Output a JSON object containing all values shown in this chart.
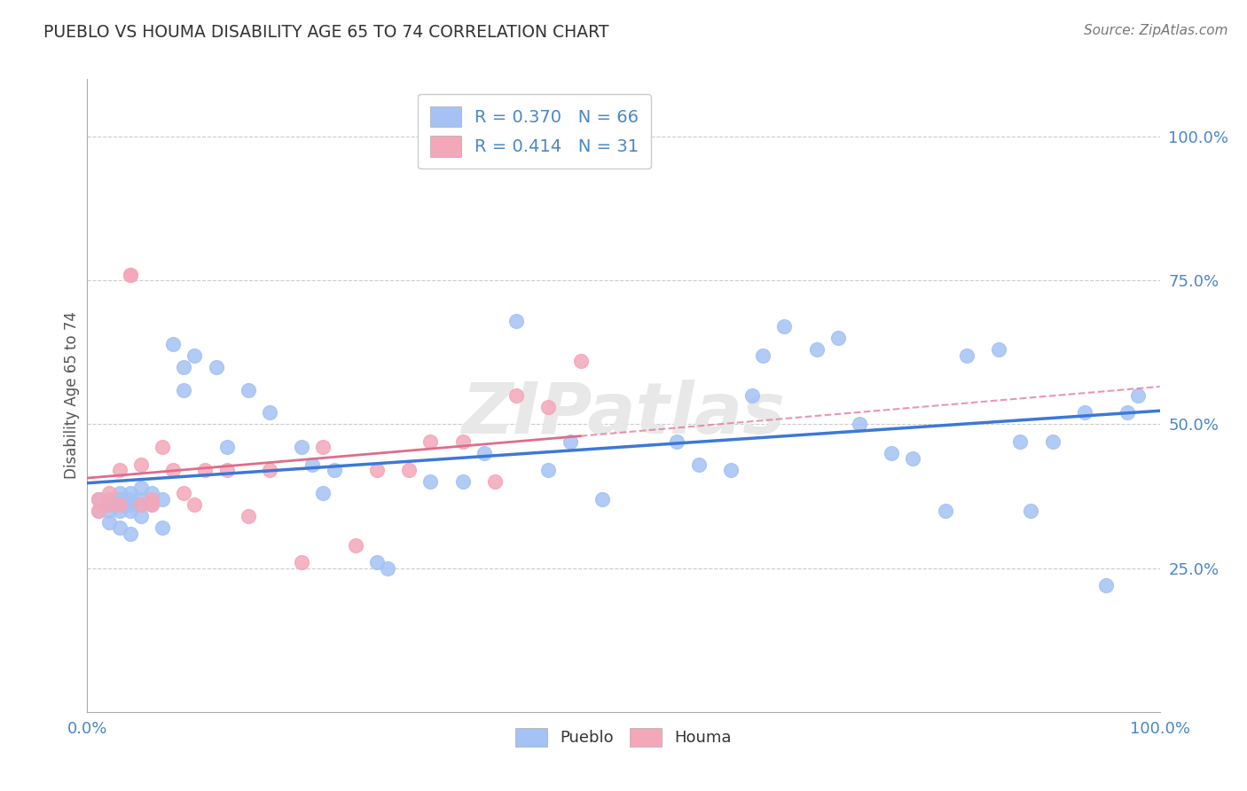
{
  "title": "PUEBLO VS HOUMA DISABILITY AGE 65 TO 74 CORRELATION CHART",
  "source": "Source: ZipAtlas.com",
  "ylabel_label": "Disability Age 65 to 74",
  "xlim": [
    0.0,
    1.0
  ],
  "ylim": [
    0.0,
    1.1
  ],
  "xtick_labels": [
    "0.0%",
    "",
    "",
    "",
    "",
    "100.0%"
  ],
  "ytick_labels": [
    "25.0%",
    "50.0%",
    "75.0%",
    "100.0%"
  ],
  "yticks": [
    0.25,
    0.5,
    0.75,
    1.0
  ],
  "pueblo_color": "#a4c2f4",
  "houma_color": "#f4a7b9",
  "pueblo_line_color": "#3c78d8",
  "houma_line_color": "#e06c8a",
  "pueblo_R": 0.37,
  "pueblo_N": 66,
  "houma_R": 0.414,
  "houma_N": 31,
  "pueblo_x": [
    0.01,
    0.01,
    0.02,
    0.02,
    0.02,
    0.02,
    0.03,
    0.03,
    0.03,
    0.03,
    0.03,
    0.04,
    0.04,
    0.04,
    0.04,
    0.04,
    0.05,
    0.05,
    0.05,
    0.05,
    0.06,
    0.06,
    0.07,
    0.07,
    0.08,
    0.09,
    0.09,
    0.1,
    0.12,
    0.13,
    0.15,
    0.17,
    0.2,
    0.21,
    0.22,
    0.23,
    0.27,
    0.28,
    0.32,
    0.35,
    0.37,
    0.4,
    0.43,
    0.45,
    0.48,
    0.55,
    0.57,
    0.6,
    0.62,
    0.63,
    0.65,
    0.68,
    0.7,
    0.72,
    0.75,
    0.77,
    0.8,
    0.82,
    0.85,
    0.87,
    0.88,
    0.9,
    0.93,
    0.95,
    0.97,
    0.98
  ],
  "pueblo_y": [
    0.37,
    0.35,
    0.37,
    0.36,
    0.35,
    0.33,
    0.38,
    0.37,
    0.36,
    0.35,
    0.32,
    0.38,
    0.37,
    0.36,
    0.35,
    0.31,
    0.39,
    0.37,
    0.36,
    0.34,
    0.38,
    0.36,
    0.37,
    0.32,
    0.64,
    0.6,
    0.56,
    0.62,
    0.6,
    0.46,
    0.56,
    0.52,
    0.46,
    0.43,
    0.38,
    0.42,
    0.26,
    0.25,
    0.4,
    0.4,
    0.45,
    0.68,
    0.42,
    0.47,
    0.37,
    0.47,
    0.43,
    0.42,
    0.55,
    0.62,
    0.67,
    0.63,
    0.65,
    0.5,
    0.45,
    0.44,
    0.35,
    0.62,
    0.63,
    0.47,
    0.35,
    0.47,
    0.52,
    0.22,
    0.52,
    0.55
  ],
  "houma_x": [
    0.01,
    0.01,
    0.02,
    0.02,
    0.03,
    0.03,
    0.04,
    0.04,
    0.05,
    0.05,
    0.06,
    0.06,
    0.07,
    0.08,
    0.09,
    0.1,
    0.11,
    0.13,
    0.15,
    0.17,
    0.2,
    0.22,
    0.25,
    0.27,
    0.3,
    0.32,
    0.35,
    0.38,
    0.4,
    0.43,
    0.46
  ],
  "houma_y": [
    0.37,
    0.35,
    0.36,
    0.38,
    0.42,
    0.36,
    0.76,
    0.76,
    0.43,
    0.36,
    0.37,
    0.36,
    0.46,
    0.42,
    0.38,
    0.36,
    0.42,
    0.42,
    0.34,
    0.42,
    0.26,
    0.46,
    0.29,
    0.42,
    0.42,
    0.47,
    0.47,
    0.4,
    0.55,
    0.53,
    0.61
  ],
  "background_color": "#ffffff",
  "grid_color": "#cccccc",
  "watermark_color": "#e8e8e8",
  "tick_color": "#4a86c8",
  "label_color": "#555555"
}
